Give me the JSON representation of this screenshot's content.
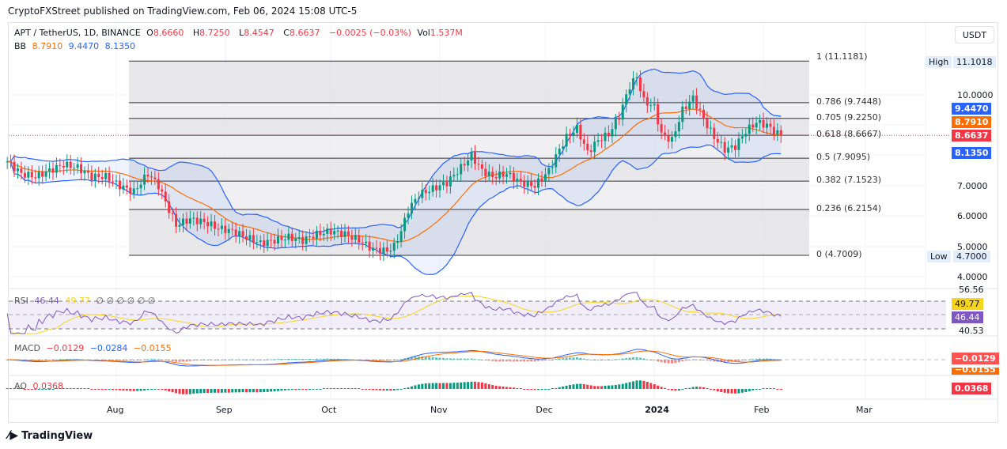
{
  "caption": "CryptoFXStreet published on TradingView.com, Feb 06, 2024 15:08 UTC-5",
  "header": {
    "symbol": "APT / TetherUS, 1D, BINANCE",
    "o_label": "O",
    "o": "8.6660",
    "h_label": "H",
    "h": "8.7250",
    "l_label": "L",
    "l": "8.4547",
    "c_label": "C",
    "c": "8.6637",
    "change": "−0.0025 (−0.03%)",
    "vol_label": "Vol",
    "vol": "1.537M",
    "bb_label": "BB",
    "bb_basis": "8.7910",
    "bb_upper": "9.4470",
    "bb_lower": "8.1350"
  },
  "currency_button": "USDT",
  "price_axis": [
    "10.0000",
    "7.0000",
    "6.0000",
    "5.0000",
    "4.0000"
  ],
  "price_tags": {
    "upper": "9.4470",
    "basis": "8.7910",
    "last": "8.6637",
    "lower": "8.1350"
  },
  "high_label": "High",
  "high_value": "11.1018",
  "low_label": "Low",
  "low_value": "4.7000",
  "fib_levels": [
    {
      "label": "1 (11.1181)",
      "price": 11.1181
    },
    {
      "label": "0.786 (9.7448)",
      "price": 9.7448
    },
    {
      "label": "0.705 (9.2250)",
      "price": 9.225
    },
    {
      "label": "0.618 (8.6667)",
      "price": 8.6667
    },
    {
      "label": "0.5 (7.9095)",
      "price": 7.9095
    },
    {
      "label": "0.382 (7.1523)",
      "price": 7.1523
    },
    {
      "label": "0.236 (6.2154)",
      "price": 6.2154
    },
    {
      "label": "0 (4.7009)",
      "price": 4.7009
    }
  ],
  "rsi": {
    "label": "RSI",
    "value": "46.44",
    "ma": "49.77",
    "extras": "∅ ∅ ∅ ∅ ∅ ∅",
    "axis_top": "56.56",
    "axis_bottom": "40.53"
  },
  "macd": {
    "label": "MACD",
    "hist": "−0.0129",
    "macd": "−0.0284",
    "signal": "−0.0155",
    "tag_hist": "−0.0129",
    "tag_signal": "−0.0155"
  },
  "ao": {
    "label": "AO",
    "value": "0.0368"
  },
  "time_axis": [
    {
      "label": "Aug",
      "day": 31
    },
    {
      "label": "Sep",
      "day": 62
    },
    {
      "label": "Oct",
      "day": 92
    },
    {
      "label": "Nov",
      "day": 123
    },
    {
      "label": "Dec",
      "day": 153
    },
    {
      "label": "2024",
      "day": 184
    },
    {
      "label": "Feb",
      "day": 215
    },
    {
      "label": "Mar",
      "day": 244
    }
  ],
  "brand": "TradingView",
  "colors": {
    "up": "#089981",
    "down": "#f23645",
    "bb_basis": "#ff6d00",
    "bb_band": "#2962ff",
    "rsi": "#7e57c2",
    "rsi_ma": "#f7d51d"
  },
  "chart_data": {
    "type": "candlestick",
    "title": "APT / TetherUS, 1D, BINANCE",
    "xlabel": "",
    "ylabel": "USDT",
    "ylim": [
      3.8,
      11.5
    ],
    "x_unit": "days since Jul 1, 2023",
    "points": [
      [
        0,
        7.8
      ],
      [
        4,
        7.4
      ],
      [
        8,
        7.3
      ],
      [
        12,
        7.5
      ],
      [
        16,
        7.7
      ],
      [
        20,
        7.6
      ],
      [
        24,
        7.3
      ],
      [
        28,
        7.3
      ],
      [
        32,
        7.0
      ],
      [
        36,
        6.8
      ],
      [
        40,
        7.4
      ],
      [
        43,
        7.0
      ],
      [
        46,
        6.2
      ],
      [
        48,
        5.7
      ],
      [
        52,
        5.9
      ],
      [
        56,
        5.8
      ],
      [
        60,
        5.6
      ],
      [
        64,
        5.5
      ],
      [
        68,
        5.3
      ],
      [
        72,
        5.1
      ],
      [
        76,
        5.2
      ],
      [
        80,
        5.3
      ],
      [
        84,
        5.2
      ],
      [
        88,
        5.4
      ],
      [
        92,
        5.5
      ],
      [
        96,
        5.4
      ],
      [
        100,
        5.2
      ],
      [
        104,
        4.9
      ],
      [
        108,
        4.85
      ],
      [
        110,
        5.0
      ],
      [
        112,
        5.5
      ],
      [
        114,
        6.2
      ],
      [
        117,
        6.7
      ],
      [
        121,
        6.9
      ],
      [
        125,
        7.1
      ],
      [
        129,
        7.6
      ],
      [
        132,
        8.0
      ],
      [
        135,
        7.5
      ],
      [
        138,
        7.3
      ],
      [
        142,
        7.4
      ],
      [
        146,
        7.1
      ],
      [
        150,
        7.0
      ],
      [
        154,
        7.5
      ],
      [
        157,
        8.2
      ],
      [
        159,
        8.6
      ],
      [
        162,
        8.9
      ],
      [
        165,
        8.1
      ],
      [
        168,
        8.5
      ],
      [
        171,
        8.7
      ],
      [
        174,
        9.3
      ],
      [
        177,
        10.3
      ],
      [
        179,
        10.6
      ],
      [
        181,
        9.8
      ],
      [
        184,
        9.6
      ],
      [
        186,
        8.7
      ],
      [
        189,
        8.5
      ],
      [
        192,
        9.5
      ],
      [
        195,
        9.9
      ],
      [
        198,
        9.2
      ],
      [
        201,
        8.6
      ],
      [
        204,
        8.2
      ],
      [
        207,
        8.3
      ],
      [
        210,
        8.8
      ],
      [
        213,
        9.1
      ],
      [
        216,
        9.0
      ],
      [
        218,
        8.8
      ],
      [
        220,
        8.66
      ]
    ]
  }
}
